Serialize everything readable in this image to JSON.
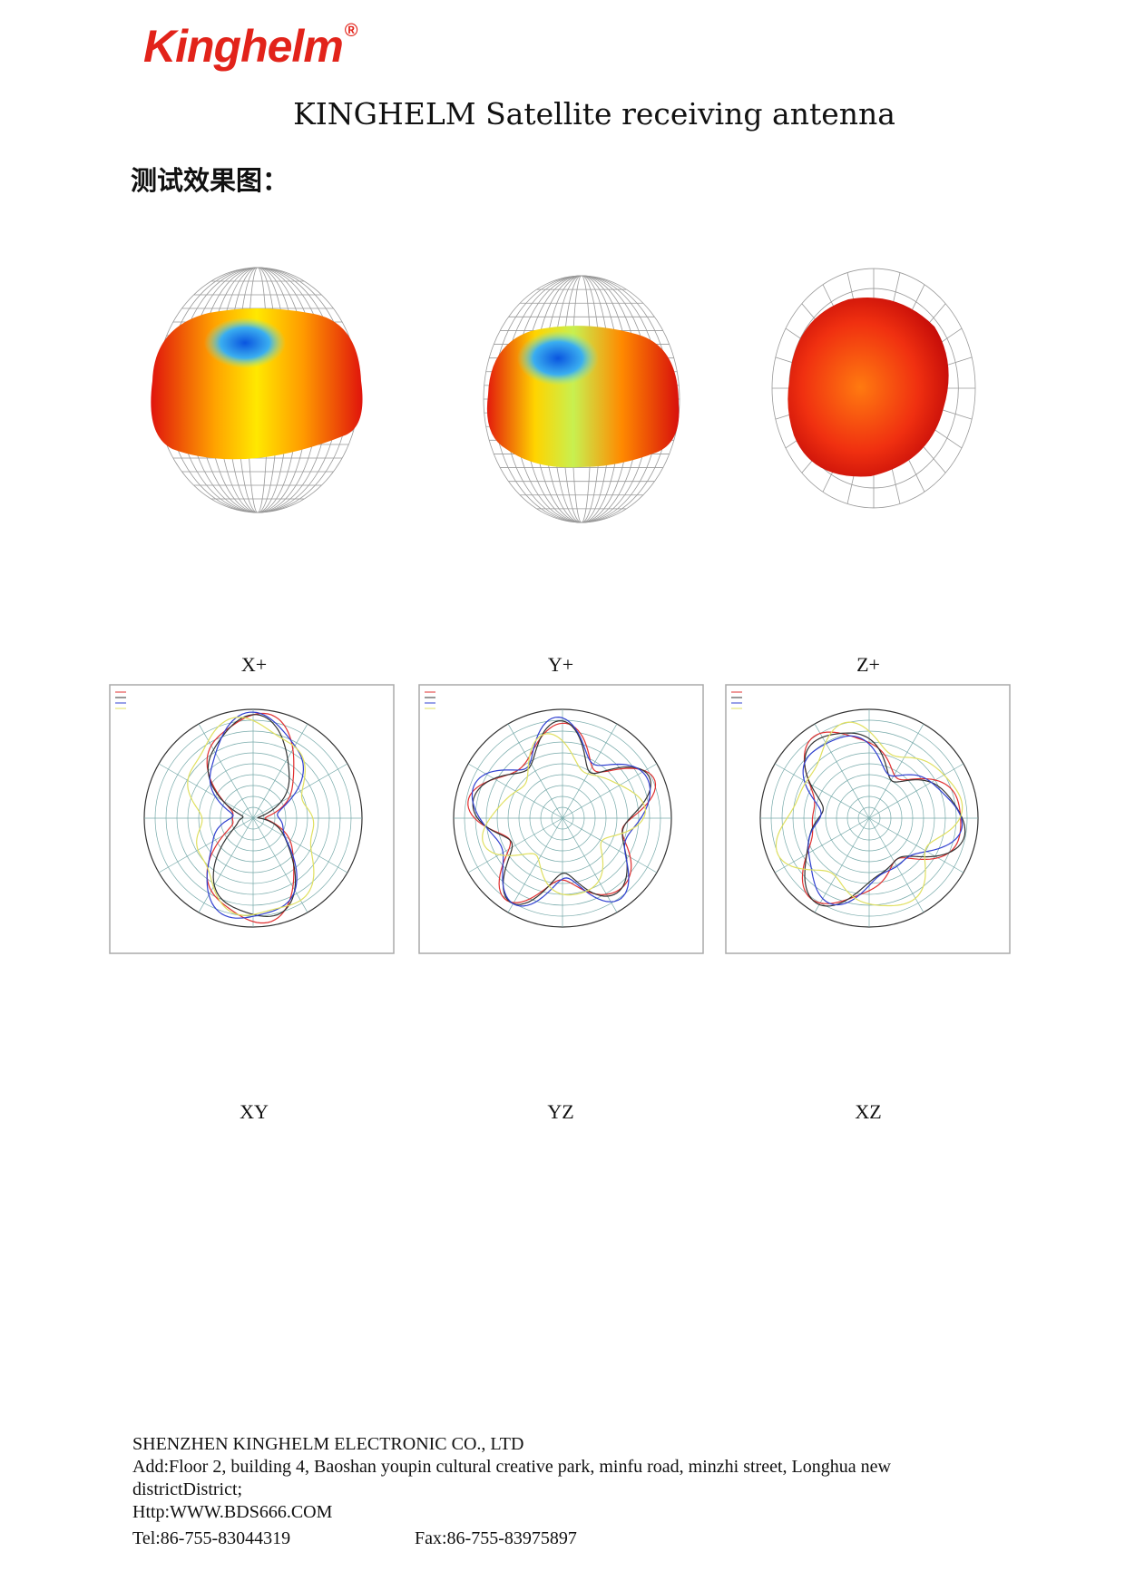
{
  "header": {
    "logo": "Kinghelm",
    "registered": "®",
    "title": "KINGHELM Satellite receiving antenna",
    "heading": "测试效果图："
  },
  "patterns_3d": [
    "X+",
    "Y+",
    "Z+"
  ],
  "polar_plots": [
    "XY",
    "YZ",
    "XZ"
  ],
  "footer": {
    "company": "SHENZHEN KINGHELM ELECTRONIC CO., LTD",
    "address": "Add:Floor 2, building 4, Baoshan youpin cultural creative park, minfu road, minzhi street, Longhua new districtDistrict;",
    "website": "Http:WWW.BDS666.COM",
    "tel": "Tel:86-755-83044319",
    "fax": "Fax:86-755-83975897"
  }
}
